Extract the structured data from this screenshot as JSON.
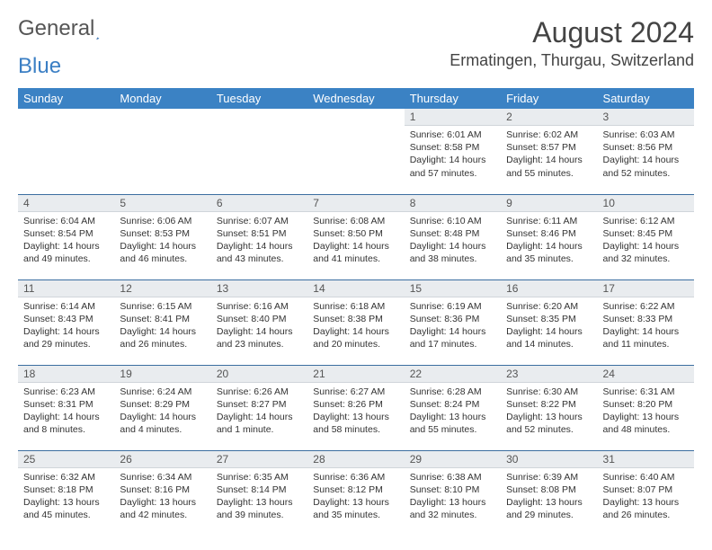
{
  "logo": {
    "text1": "General",
    "text2": "Blue"
  },
  "header": {
    "title": "August 2024",
    "location": "Ermatingen, Thurgau, Switzerland"
  },
  "colors": {
    "header_bg": "#3b82c4",
    "header_text": "#ffffff",
    "daynum_bg": "#e9ecef",
    "week_border": "#3b6ea0",
    "logo_blue": "#3b7fc4"
  },
  "dayHeaders": [
    "Sunday",
    "Monday",
    "Tuesday",
    "Wednesday",
    "Thursday",
    "Friday",
    "Saturday"
  ],
  "weeks": [
    [
      null,
      null,
      null,
      null,
      {
        "num": "1",
        "sunrise": "6:01 AM",
        "sunset": "8:58 PM",
        "daylight": "14 hours and 57 minutes."
      },
      {
        "num": "2",
        "sunrise": "6:02 AM",
        "sunset": "8:57 PM",
        "daylight": "14 hours and 55 minutes."
      },
      {
        "num": "3",
        "sunrise": "6:03 AM",
        "sunset": "8:56 PM",
        "daylight": "14 hours and 52 minutes."
      }
    ],
    [
      {
        "num": "4",
        "sunrise": "6:04 AM",
        "sunset": "8:54 PM",
        "daylight": "14 hours and 49 minutes."
      },
      {
        "num": "5",
        "sunrise": "6:06 AM",
        "sunset": "8:53 PM",
        "daylight": "14 hours and 46 minutes."
      },
      {
        "num": "6",
        "sunrise": "6:07 AM",
        "sunset": "8:51 PM",
        "daylight": "14 hours and 43 minutes."
      },
      {
        "num": "7",
        "sunrise": "6:08 AM",
        "sunset": "8:50 PM",
        "daylight": "14 hours and 41 minutes."
      },
      {
        "num": "8",
        "sunrise": "6:10 AM",
        "sunset": "8:48 PM",
        "daylight": "14 hours and 38 minutes."
      },
      {
        "num": "9",
        "sunrise": "6:11 AM",
        "sunset": "8:46 PM",
        "daylight": "14 hours and 35 minutes."
      },
      {
        "num": "10",
        "sunrise": "6:12 AM",
        "sunset": "8:45 PM",
        "daylight": "14 hours and 32 minutes."
      }
    ],
    [
      {
        "num": "11",
        "sunrise": "6:14 AM",
        "sunset": "8:43 PM",
        "daylight": "14 hours and 29 minutes."
      },
      {
        "num": "12",
        "sunrise": "6:15 AM",
        "sunset": "8:41 PM",
        "daylight": "14 hours and 26 minutes."
      },
      {
        "num": "13",
        "sunrise": "6:16 AM",
        "sunset": "8:40 PM",
        "daylight": "14 hours and 23 minutes."
      },
      {
        "num": "14",
        "sunrise": "6:18 AM",
        "sunset": "8:38 PM",
        "daylight": "14 hours and 20 minutes."
      },
      {
        "num": "15",
        "sunrise": "6:19 AM",
        "sunset": "8:36 PM",
        "daylight": "14 hours and 17 minutes."
      },
      {
        "num": "16",
        "sunrise": "6:20 AM",
        "sunset": "8:35 PM",
        "daylight": "14 hours and 14 minutes."
      },
      {
        "num": "17",
        "sunrise": "6:22 AM",
        "sunset": "8:33 PM",
        "daylight": "14 hours and 11 minutes."
      }
    ],
    [
      {
        "num": "18",
        "sunrise": "6:23 AM",
        "sunset": "8:31 PM",
        "daylight": "14 hours and 8 minutes."
      },
      {
        "num": "19",
        "sunrise": "6:24 AM",
        "sunset": "8:29 PM",
        "daylight": "14 hours and 4 minutes."
      },
      {
        "num": "20",
        "sunrise": "6:26 AM",
        "sunset": "8:27 PM",
        "daylight": "14 hours and 1 minute."
      },
      {
        "num": "21",
        "sunrise": "6:27 AM",
        "sunset": "8:26 PM",
        "daylight": "13 hours and 58 minutes."
      },
      {
        "num": "22",
        "sunrise": "6:28 AM",
        "sunset": "8:24 PM",
        "daylight": "13 hours and 55 minutes."
      },
      {
        "num": "23",
        "sunrise": "6:30 AM",
        "sunset": "8:22 PM",
        "daylight": "13 hours and 52 minutes."
      },
      {
        "num": "24",
        "sunrise": "6:31 AM",
        "sunset": "8:20 PM",
        "daylight": "13 hours and 48 minutes."
      }
    ],
    [
      {
        "num": "25",
        "sunrise": "6:32 AM",
        "sunset": "8:18 PM",
        "daylight": "13 hours and 45 minutes."
      },
      {
        "num": "26",
        "sunrise": "6:34 AM",
        "sunset": "8:16 PM",
        "daylight": "13 hours and 42 minutes."
      },
      {
        "num": "27",
        "sunrise": "6:35 AM",
        "sunset": "8:14 PM",
        "daylight": "13 hours and 39 minutes."
      },
      {
        "num": "28",
        "sunrise": "6:36 AM",
        "sunset": "8:12 PM",
        "daylight": "13 hours and 35 minutes."
      },
      {
        "num": "29",
        "sunrise": "6:38 AM",
        "sunset": "8:10 PM",
        "daylight": "13 hours and 32 minutes."
      },
      {
        "num": "30",
        "sunrise": "6:39 AM",
        "sunset": "8:08 PM",
        "daylight": "13 hours and 29 minutes."
      },
      {
        "num": "31",
        "sunrise": "6:40 AM",
        "sunset": "8:07 PM",
        "daylight": "13 hours and 26 minutes."
      }
    ]
  ],
  "labels": {
    "sunrise": "Sunrise:",
    "sunset": "Sunset:",
    "daylight": "Daylight:"
  }
}
